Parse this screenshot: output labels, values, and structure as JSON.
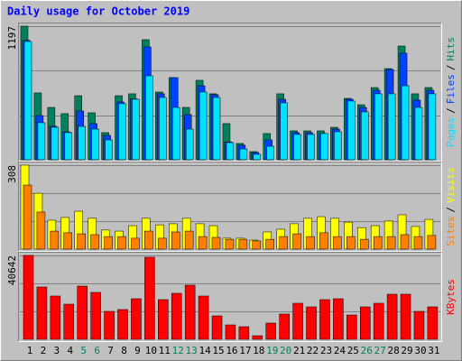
{
  "title": "Daily usage for October 2019",
  "chart_data": [
    {
      "type": "bar",
      "ylim": [
        0,
        1197
      ],
      "yticks": [
        1197
      ],
      "grid": true,
      "legend_separator": "/",
      "series": [
        {
          "name": "Hits",
          "color": "#00805c",
          "values": [
            1197,
            599,
            469,
            413,
            574,
            421,
            243,
            574,
            591,
            1076,
            607,
            736,
            469,
            712,
            591,
            324,
            146,
            73,
            235,
            591,
            259,
            259,
            259,
            291,
            550,
            493,
            647,
            817,
            1019,
            591,
            647
          ]
        },
        {
          "name": "Files",
          "color": "#0040ff",
          "values": [
            1070,
            396,
            300,
            250,
            437,
            324,
            218,
            518,
            545,
            1011,
            591,
            736,
            404,
            663,
            583,
            160,
            130,
            65,
            178,
            542,
            243,
            243,
            235,
            275,
            542,
            469,
            623,
            809,
            955,
            534,
            623
          ]
        },
        {
          "name": "Pages",
          "color": "#00e0ff",
          "values": [
            1060,
            332,
            291,
            243,
            299,
            275,
            178,
            502,
            542,
            752,
            558,
            469,
            275,
            607,
            558,
            154,
            97,
            49,
            121,
            510,
            227,
            227,
            235,
            251,
            526,
            429,
            591,
            591,
            663,
            469,
            591
          ]
        }
      ]
    },
    {
      "type": "bar",
      "ylim": [
        0,
        308
      ],
      "yticks": [
        308
      ],
      "grid": true,
      "legend_separator": "/",
      "series": [
        {
          "name": "Visits",
          "color": "#ffff00",
          "values": [
            308,
            205,
            106,
            116,
            139,
            113,
            70,
            66,
            86,
            113,
            89,
            93,
            113,
            93,
            86,
            40,
            40,
            33,
            63,
            73,
            93,
            113,
            119,
            113,
            99,
            79,
            86,
            103,
            126,
            83,
            109
          ]
        },
        {
          "name": "Sites",
          "color": "#ff8000",
          "values": [
            235,
            136,
            66,
            60,
            56,
            53,
            46,
            46,
            40,
            66,
            40,
            63,
            66,
            46,
            43,
            36,
            36,
            30,
            36,
            46,
            56,
            46,
            60,
            46,
            46,
            36,
            46,
            46,
            53,
            46,
            50
          ]
        }
      ]
    },
    {
      "type": "bar",
      "ylim": [
        0,
        40642
      ],
      "yticks": [
        40642
      ],
      "grid": true,
      "categories": [
        "1",
        "2",
        "3",
        "4",
        "5",
        "6",
        "7",
        "8",
        "9",
        "10",
        "11",
        "12",
        "13",
        "14",
        "15",
        "16",
        "17",
        "18",
        "19",
        "20",
        "21",
        "22",
        "23",
        "24",
        "25",
        "26",
        "27",
        "28",
        "29",
        "30",
        "31"
      ],
      "x_label_colors": [
        "#000000",
        "#000000",
        "#000000",
        "#000000",
        "#00805c",
        "#00805c",
        "#000000",
        "#000000",
        "#000000",
        "#000000",
        "#000000",
        "#00805c",
        "#00805c",
        "#000000",
        "#000000",
        "#000000",
        "#000000",
        "#000000",
        "#00805c",
        "#00805c",
        "#000000",
        "#000000",
        "#000000",
        "#000000",
        "#000000",
        "#00805c",
        "#00805c",
        "#000000",
        "#000000",
        "#000000",
        "#000000"
      ],
      "series": [
        {
          "name": "KBytes",
          "color": "#ff0000",
          "values": [
            40642,
            25350,
            20980,
            17040,
            25790,
            22730,
            13550,
            14420,
            19670,
            39770,
            19230,
            22290,
            26220,
            20980,
            11360,
            6990,
            6120,
            1750,
            7870,
            12240,
            17480,
            15730,
            19230,
            19670,
            11800,
            15730,
            17480,
            21850,
            21850,
            13550,
            15730
          ]
        }
      ]
    }
  ]
}
